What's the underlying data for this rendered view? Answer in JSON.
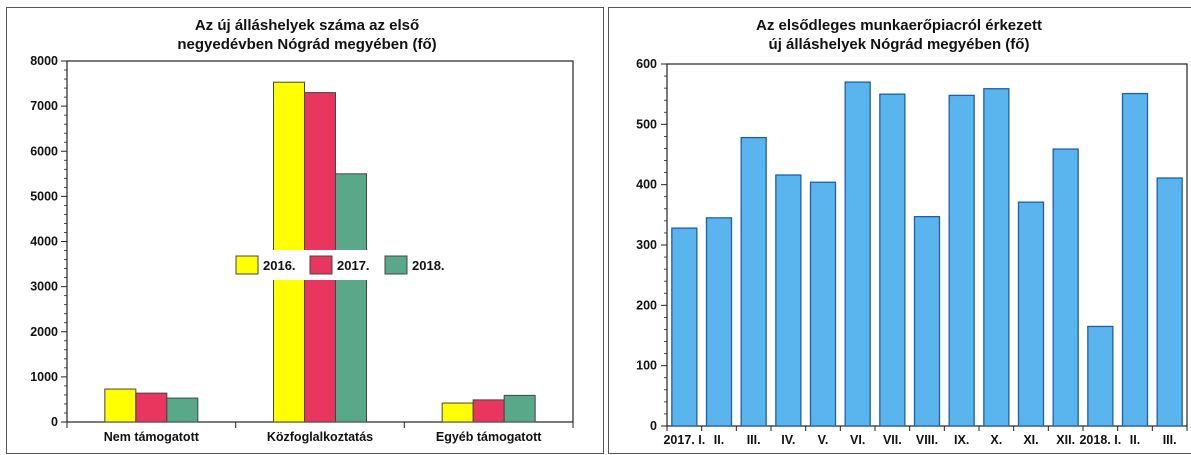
{
  "chart_data": [
    {
      "type": "bar",
      "title": [
        "Az új álláshelyek száma az első",
        "negyedévben Nógrád megyében (fő)"
      ],
      "categories": [
        "Nem támogatott",
        "Közfoglalkoztatás",
        "Egyéb támogatott"
      ],
      "series": [
        {
          "name": "2016.",
          "color": "#ffff00",
          "values": [
            730,
            7530,
            420
          ]
        },
        {
          "name": "2017.",
          "color": "#e8365f",
          "values": [
            640,
            7300,
            490
          ]
        },
        {
          "name": "2018.",
          "color": "#5aa88a",
          "values": [
            530,
            5500,
            590
          ]
        }
      ],
      "ylim": [
        0,
        8000
      ],
      "yticks": [
        "0",
        "1000",
        "2000",
        "3000",
        "4000",
        "5000",
        "6000",
        "7000",
        "8000"
      ],
      "grid": false,
      "legend": "center"
    },
    {
      "type": "bar",
      "title": [
        "Az elsődleges munkaerőpiacról érkezett",
        "új álláshelyek Nógrád megyében (fő)"
      ],
      "categories": [
        "2017. I.",
        "II.",
        "III.",
        "IV.",
        "V.",
        "VI.",
        "VII.",
        "VIII.",
        "IX.",
        "X.",
        "XI.",
        "XII.",
        "2018. I.",
        "II.",
        "III."
      ],
      "values": [
        328,
        345,
        478,
        416,
        404,
        570,
        550,
        347,
        548,
        559,
        371,
        459,
        165,
        551,
        411
      ],
      "color": "#5ab4ee",
      "ylim": [
        0,
        600
      ],
      "yticks": [
        "0",
        "100",
        "200",
        "300",
        "400",
        "500",
        "600"
      ],
      "grid": false
    }
  ]
}
